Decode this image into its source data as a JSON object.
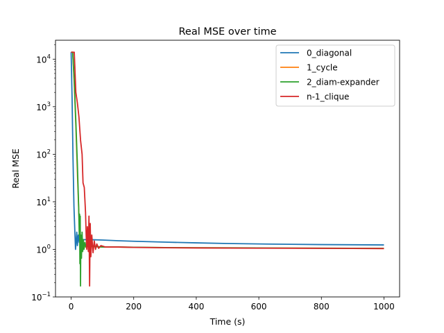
{
  "chart_data": {
    "type": "line",
    "title": "Real MSE over time",
    "xlabel": "Time (s)",
    "ylabel": "Real MSE",
    "xlim": [
      -50,
      1050
    ],
    "ylim": [
      0.1,
      25000
    ],
    "yscale": "log",
    "grid": false,
    "legend_position": "top-right",
    "x_ticks": [
      0,
      200,
      400,
      600,
      800,
      1000
    ],
    "x_tick_labels": [
      "0",
      "200",
      "400",
      "600",
      "800",
      "1000"
    ],
    "y_ticks": [
      0.1,
      1,
      10,
      100,
      1000,
      10000
    ],
    "y_tick_labels": [
      {
        "base": "10",
        "exp": "−1"
      },
      {
        "base": "10",
        "exp": "0"
      },
      {
        "base": "10",
        "exp": "1"
      },
      {
        "base": "10",
        "exp": "2"
      },
      {
        "base": "10",
        "exp": "3"
      },
      {
        "base": "10",
        "exp": "4"
      }
    ],
    "series": [
      {
        "name": "0_diagonal",
        "color": "#1f77b4",
        "points": [
          [
            0,
            14000
          ],
          [
            3,
            1500
          ],
          [
            6,
            80
          ],
          [
            9,
            8
          ],
          [
            12,
            2.2
          ],
          [
            14,
            1.0
          ],
          [
            16,
            1.5
          ],
          [
            18,
            2.3
          ],
          [
            20,
            1.2
          ],
          [
            23,
            2.0
          ],
          [
            26,
            1.4
          ],
          [
            30,
            1.6
          ],
          [
            40,
            1.6
          ],
          [
            60,
            1.6
          ],
          [
            100,
            1.57
          ],
          [
            150,
            1.52
          ],
          [
            200,
            1.48
          ],
          [
            300,
            1.42
          ],
          [
            400,
            1.37
          ],
          [
            500,
            1.33
          ],
          [
            600,
            1.3
          ],
          [
            700,
            1.28
          ],
          [
            800,
            1.26
          ],
          [
            900,
            1.25
          ],
          [
            1000,
            1.24
          ]
        ]
      },
      {
        "name": "1_cycle",
        "color": "#ff7f0e",
        "points": [
          [
            0,
            14000
          ],
          [
            5,
            14000
          ],
          [
            10,
            3000
          ],
          [
            15,
            400
          ],
          [
            20,
            40
          ],
          [
            25,
            5
          ],
          [
            28,
            1.8
          ],
          [
            30,
            1.2
          ],
          [
            34,
            1.1
          ],
          [
            38,
            1.35
          ],
          [
            42,
            1.1
          ],
          [
            48,
            1.2
          ],
          [
            55,
            1.12
          ],
          [
            70,
            1.15
          ],
          [
            100,
            1.12
          ],
          [
            150,
            1.12
          ],
          [
            200,
            1.11
          ],
          [
            300,
            1.09
          ],
          [
            400,
            1.08
          ],
          [
            600,
            1.07
          ],
          [
            800,
            1.06
          ],
          [
            1000,
            1.05
          ]
        ]
      },
      {
        "name": "2_diam-expander",
        "color": "#2ca02c",
        "points": [
          [
            0,
            14000
          ],
          [
            5,
            14000
          ],
          [
            10,
            3500
          ],
          [
            15,
            500
          ],
          [
            20,
            60
          ],
          [
            24,
            8
          ],
          [
            26,
            2.0
          ],
          [
            27,
            5.5
          ],
          [
            28,
            0.5
          ],
          [
            29,
            5.0
          ],
          [
            30,
            0.17
          ],
          [
            31,
            2.0
          ],
          [
            33,
            0.65
          ],
          [
            35,
            2.3
          ],
          [
            37,
            0.9
          ],
          [
            39,
            1.6
          ],
          [
            41,
            1.0
          ],
          [
            44,
            1.4
          ],
          [
            48,
            1.1
          ],
          [
            55,
            1.2
          ],
          [
            70,
            1.15
          ],
          [
            100,
            1.12
          ],
          [
            150,
            1.12
          ],
          [
            200,
            1.11
          ],
          [
            300,
            1.09
          ],
          [
            400,
            1.08
          ],
          [
            600,
            1.07
          ],
          [
            800,
            1.06
          ],
          [
            1000,
            1.05
          ]
        ]
      },
      {
        "name": "n-1_clique",
        "color": "#d62728",
        "points": [
          [
            0,
            14000
          ],
          [
            10,
            14000
          ],
          [
            15,
            2000
          ],
          [
            20,
            1200
          ],
          [
            25,
            600
          ],
          [
            30,
            200
          ],
          [
            35,
            100
          ],
          [
            38,
            25
          ],
          [
            42,
            20
          ],
          [
            46,
            6
          ],
          [
            48,
            2.0
          ],
          [
            50,
            1.0
          ],
          [
            52,
            3.0
          ],
          [
            55,
            0.9
          ],
          [
            57,
            5.0
          ],
          [
            59,
            0.17
          ],
          [
            61,
            3.5
          ],
          [
            63,
            0.7
          ],
          [
            66,
            2.0
          ],
          [
            70,
            0.85
          ],
          [
            74,
            1.5
          ],
          [
            78,
            1.0
          ],
          [
            82,
            1.3
          ],
          [
            88,
            1.05
          ],
          [
            95,
            1.2
          ],
          [
            110,
            1.12
          ],
          [
            150,
            1.12
          ],
          [
            200,
            1.1
          ],
          [
            300,
            1.08
          ],
          [
            400,
            1.07
          ],
          [
            600,
            1.06
          ],
          [
            800,
            1.05
          ],
          [
            1000,
            1.04
          ]
        ]
      }
    ]
  }
}
